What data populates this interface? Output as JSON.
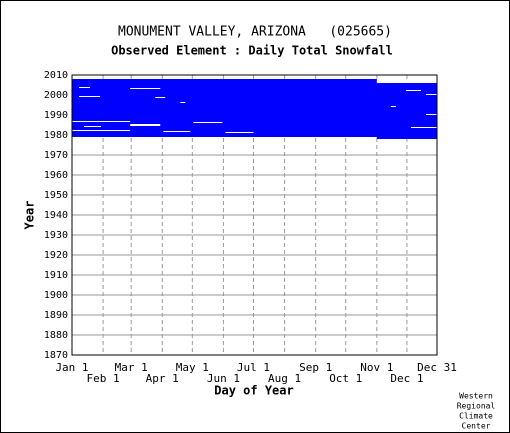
{
  "chart_data": {
    "type": "availability",
    "title": "MONUMENT VALLEY, ARIZONA   (025665)",
    "subtitle": "Observed Element : Daily Total Snowfall",
    "xlabel": "Day of Year",
    "ylabel": "Year",
    "footer": [
      "Western",
      "Regional",
      "Climate",
      "Center"
    ],
    "color": "#0000ff",
    "xlim": [
      1,
      365
    ],
    "ylim": [
      1870,
      2010
    ],
    "xticks": [
      {
        "value": 1,
        "label": "Jan 1"
      },
      {
        "value": 32,
        "label": "Feb 1"
      },
      {
        "value": 60,
        "label": "Mar 1"
      },
      {
        "value": 91,
        "label": "Apr 1"
      },
      {
        "value": 121,
        "label": "May 1"
      },
      {
        "value": 152,
        "label": "Jun 1"
      },
      {
        "value": 182,
        "label": "Jul 1"
      },
      {
        "value": 213,
        "label": "Aug 1"
      },
      {
        "value": 244,
        "label": "Sep 1"
      },
      {
        "value": 274,
        "label": "Oct 1"
      },
      {
        "value": 305,
        "label": "Nov 1"
      },
      {
        "value": 335,
        "label": "Dec 1"
      },
      {
        "value": 365,
        "label": "Dec 31"
      }
    ],
    "yticks": [
      1870,
      1880,
      1890,
      1900,
      1910,
      1920,
      1930,
      1940,
      1950,
      1960,
      1970,
      1980,
      1990,
      2000,
      2010
    ],
    "blocks": [
      [
        1,
        365,
        1979,
        2008
      ],
      [
        305,
        365,
        1978,
        1979
      ]
    ],
    "gaps": [
      [
        305,
        365,
        2006,
        2008
      ],
      [
        1,
        59,
        1986.5,
        1987
      ],
      [
        13,
        30,
        1984,
        1984.5
      ],
      [
        8,
        19,
        2003.5,
        2004
      ],
      [
        8,
        29,
        1999,
        1999.5
      ],
      [
        1,
        59,
        1982,
        1982.5
      ],
      [
        59,
        89,
        1984.5,
        1985.5
      ],
      [
        92,
        119,
        1981.5,
        1982
      ],
      [
        122,
        151,
        1986,
        1986.5
      ],
      [
        154,
        182,
        1981,
        1981.5
      ],
      [
        59,
        89,
        2003,
        2003.5
      ],
      [
        84,
        94,
        1998.5,
        1999
      ],
      [
        109,
        114,
        1996,
        1996.5
      ],
      [
        334,
        349,
        2002,
        2002.5
      ],
      [
        354,
        365,
        2000,
        2000.5
      ],
      [
        354,
        365,
        1990,
        1990.5
      ],
      [
        339,
        365,
        1983.5,
        1984
      ],
      [
        319,
        324,
        1994,
        1994.5
      ]
    ]
  }
}
